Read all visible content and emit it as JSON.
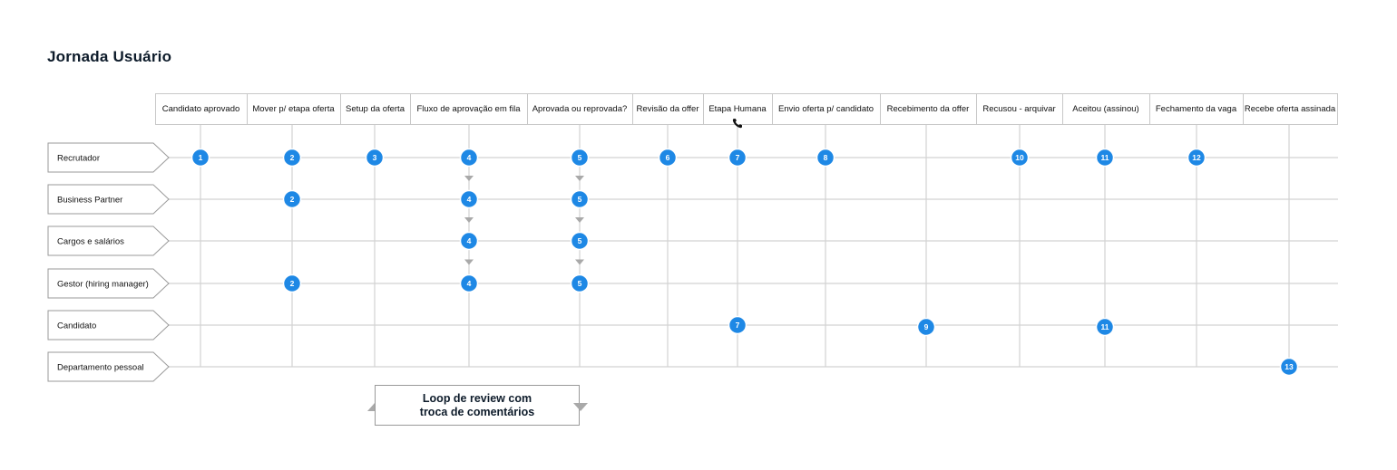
{
  "title": "Jornada Usuário",
  "colors": {
    "node": "#1e88e5",
    "line": "#d2d2d2",
    "arrow": "#a9a9a9",
    "text": "#111111"
  },
  "stages": [
    "Candidato aprovado",
    "Mover p/ etapa oferta",
    "Setup da oferta",
    "Fluxo de aprovação em fila",
    "Aprovada ou reprovada?",
    "Revisão da offer",
    "Etapa Humana",
    "Envio oferta p/ candidato",
    "Recebimento da offer",
    "Recusou - arquivar",
    "Aceitou (assinou)",
    "Fechamento da vaga",
    "Recebe oferta assinada"
  ],
  "stage_icons": [
    {
      "stage": 6,
      "icon": "phone-icon"
    }
  ],
  "lanes": [
    "Recrutador",
    "Business Partner",
    "Cargos e salários",
    "Gestor (hiring manager)",
    "Candidato",
    "Departamento pessoal"
  ],
  "nodes": [
    {
      "lane": 0,
      "stage": 0,
      "label": "1"
    },
    {
      "lane": 0,
      "stage": 1,
      "label": "2"
    },
    {
      "lane": 0,
      "stage": 2,
      "label": "3"
    },
    {
      "lane": 0,
      "stage": 3,
      "label": "4"
    },
    {
      "lane": 0,
      "stage": 4,
      "label": "5"
    },
    {
      "lane": 0,
      "stage": 5,
      "label": "6"
    },
    {
      "lane": 0,
      "stage": 6,
      "label": "7"
    },
    {
      "lane": 0,
      "stage": 7,
      "label": "8"
    },
    {
      "lane": 0,
      "stage": 9,
      "label": "10"
    },
    {
      "lane": 0,
      "stage": 10,
      "label": "11"
    },
    {
      "lane": 0,
      "stage": 11,
      "label": "12"
    },
    {
      "lane": 1,
      "stage": 1,
      "label": "2"
    },
    {
      "lane": 1,
      "stage": 3,
      "label": "4"
    },
    {
      "lane": 1,
      "stage": 4,
      "label": "5"
    },
    {
      "lane": 2,
      "stage": 3,
      "label": "4"
    },
    {
      "lane": 2,
      "stage": 4,
      "label": "5"
    },
    {
      "lane": 3,
      "stage": 1,
      "label": "2"
    },
    {
      "lane": 3,
      "stage": 3,
      "label": "4"
    },
    {
      "lane": 3,
      "stage": 4,
      "label": "5"
    },
    {
      "lane": 4,
      "stage": 6,
      "label": "7"
    },
    {
      "lane": 4,
      "stage": 8,
      "label": "9"
    },
    {
      "lane": 4,
      "stage": 10,
      "label": "11"
    },
    {
      "lane": 5,
      "stage": 12,
      "label": "13"
    }
  ],
  "arrows": [
    {
      "stage": 3,
      "from_lane": 0,
      "to_lane": 1
    },
    {
      "stage": 3,
      "from_lane": 1,
      "to_lane": 2
    },
    {
      "stage": 3,
      "from_lane": 2,
      "to_lane": 3
    },
    {
      "stage": 4,
      "from_lane": 0,
      "to_lane": 1
    },
    {
      "stage": 4,
      "from_lane": 1,
      "to_lane": 2
    },
    {
      "stage": 4,
      "from_lane": 2,
      "to_lane": 3
    }
  ],
  "loop": {
    "line1": "Loop de review com",
    "line2": "troca de comentários"
  }
}
